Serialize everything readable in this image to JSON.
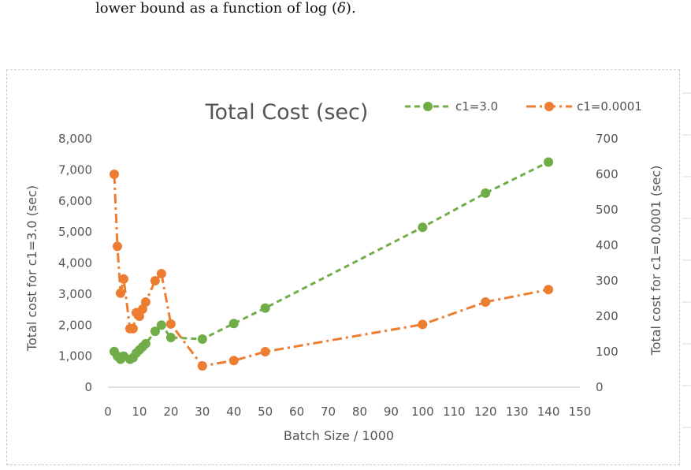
{
  "caption": {
    "line_main": "lower bound as a function of log (",
    "delta": "δ",
    "line_end": ")."
  },
  "colors": {
    "series1": "#70ad47",
    "series2": "#ed7d31",
    "axis": "#bfbfbf",
    "text": "#595959"
  },
  "chart_data": {
    "type": "line",
    "title": "Total Cost (sec)",
    "xlabel": "Batch Size / 1000",
    "ylabel_left": "Total cost for c1=3.0 (sec)",
    "ylabel_right": "Total cost for c1=0.0001 (sec)",
    "xlim": [
      0,
      150
    ],
    "ylim_left": [
      0,
      8000
    ],
    "ylim_right": [
      0,
      700
    ],
    "x_ticks": [
      0,
      10,
      20,
      30,
      40,
      50,
      60,
      70,
      80,
      90,
      100,
      110,
      120,
      130,
      140,
      150
    ],
    "y_left_ticks": [
      "0",
      "1,000",
      "2,000",
      "3,000",
      "4,000",
      "5,000",
      "6,000",
      "7,000",
      "8,000"
    ],
    "y_left_values": [
      0,
      1000,
      2000,
      3000,
      4000,
      5000,
      6000,
      7000,
      8000
    ],
    "y_right_ticks": [
      "0",
      "100",
      "200",
      "300",
      "400",
      "500",
      "600",
      "700"
    ],
    "y_right_values": [
      0,
      100,
      200,
      300,
      400,
      500,
      600,
      700
    ],
    "legend_position": "top-right",
    "grid": false,
    "series": [
      {
        "name": "c1=3.0",
        "axis": "left",
        "style": "dashed",
        "x": [
          2,
          3,
          4,
          5,
          7,
          8,
          9,
          10,
          11,
          12,
          15,
          17,
          20,
          30,
          40,
          50,
          100,
          120,
          140
        ],
        "y": [
          1150,
          1000,
          900,
          1000,
          900,
          950,
          1100,
          1200,
          1300,
          1400,
          1800,
          2000,
          1600,
          1550,
          2050,
          2550,
          5150,
          6250,
          7250
        ]
      },
      {
        "name": "c1=0.0001",
        "axis": "right",
        "style": "dash-dot",
        "x": [
          2,
          3,
          4,
          5,
          7,
          8,
          9,
          10,
          11,
          12,
          15,
          17,
          20,
          30,
          40,
          50,
          100,
          120,
          140
        ],
        "y": [
          600,
          397,
          265,
          305,
          165,
          165,
          210,
          200,
          220,
          240,
          300,
          320,
          178,
          60,
          75,
          100,
          177,
          240,
          275
        ]
      }
    ]
  }
}
